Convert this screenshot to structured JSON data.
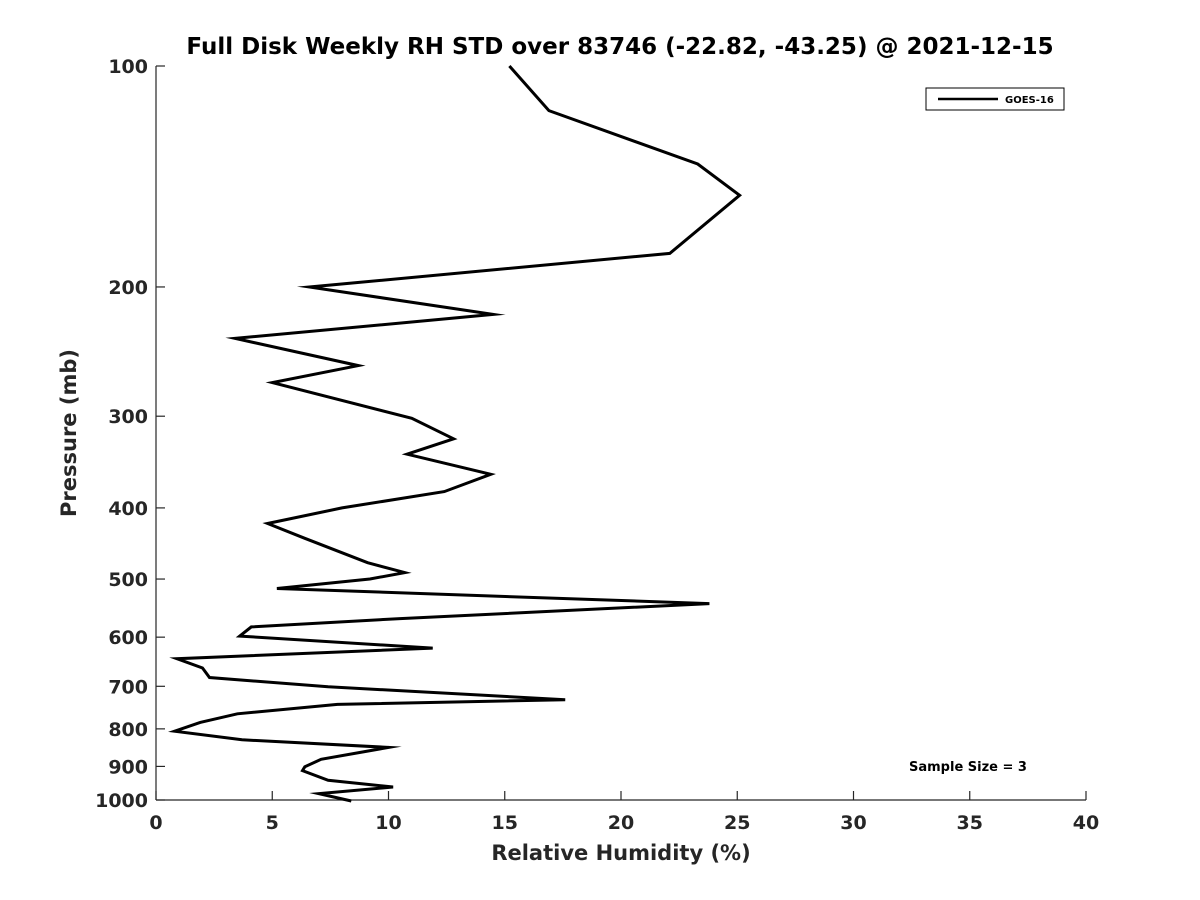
{
  "chart_data": {
    "type": "line",
    "title": "Full Disk Weekly RH STD over 83746 (-22.82, -43.25) @ 2021-12-15",
    "xlabel": "Relative Humidity (%)",
    "ylabel": "Pressure (mb)",
    "xlim": [
      0,
      40
    ],
    "ylim": [
      100,
      1000
    ],
    "yscale": "log",
    "yreversed": true,
    "xticks": [
      0,
      5,
      10,
      15,
      20,
      25,
      30,
      35,
      40
    ],
    "yticks": [
      100,
      200,
      300,
      400,
      500,
      600,
      700,
      800,
      900,
      1000
    ],
    "grid": false,
    "legend_position": "top-right",
    "annotation": "Sample Size = 3",
    "line_color": "#000000",
    "series": [
      {
        "name": "GOES-16",
        "x": [
          15.2,
          16.9,
          23.3,
          25.1,
          22.1,
          6.6,
          14.5,
          3.4,
          8.7,
          5.0,
          11.0,
          12.8,
          10.8,
          14.4,
          12.4,
          8.0,
          4.8,
          6.4,
          9.1,
          10.7,
          9.2,
          5.2,
          23.8,
          10.5,
          4.1,
          3.6,
          11.9,
          0.9,
          2.0,
          2.3,
          7.4,
          17.6,
          7.8,
          3.5,
          1.9,
          0.8,
          3.7,
          10.0,
          7.1,
          6.4,
          6.3,
          7.4,
          10.2,
          7.0,
          8.4
        ],
        "y": [
          100,
          115,
          136,
          150,
          180,
          200,
          218,
          235,
          256,
          270,
          302,
          322,
          338,
          360,
          380,
          400,
          420,
          440,
          475,
          490,
          500,
          515,
          540,
          566,
          581,
          598,
          621,
          642,
          661,
          681,
          701,
          730,
          741,
          763,
          784,
          806,
          828,
          848,
          880,
          901,
          912,
          940,
          960,
          980,
          1003
        ]
      }
    ]
  }
}
